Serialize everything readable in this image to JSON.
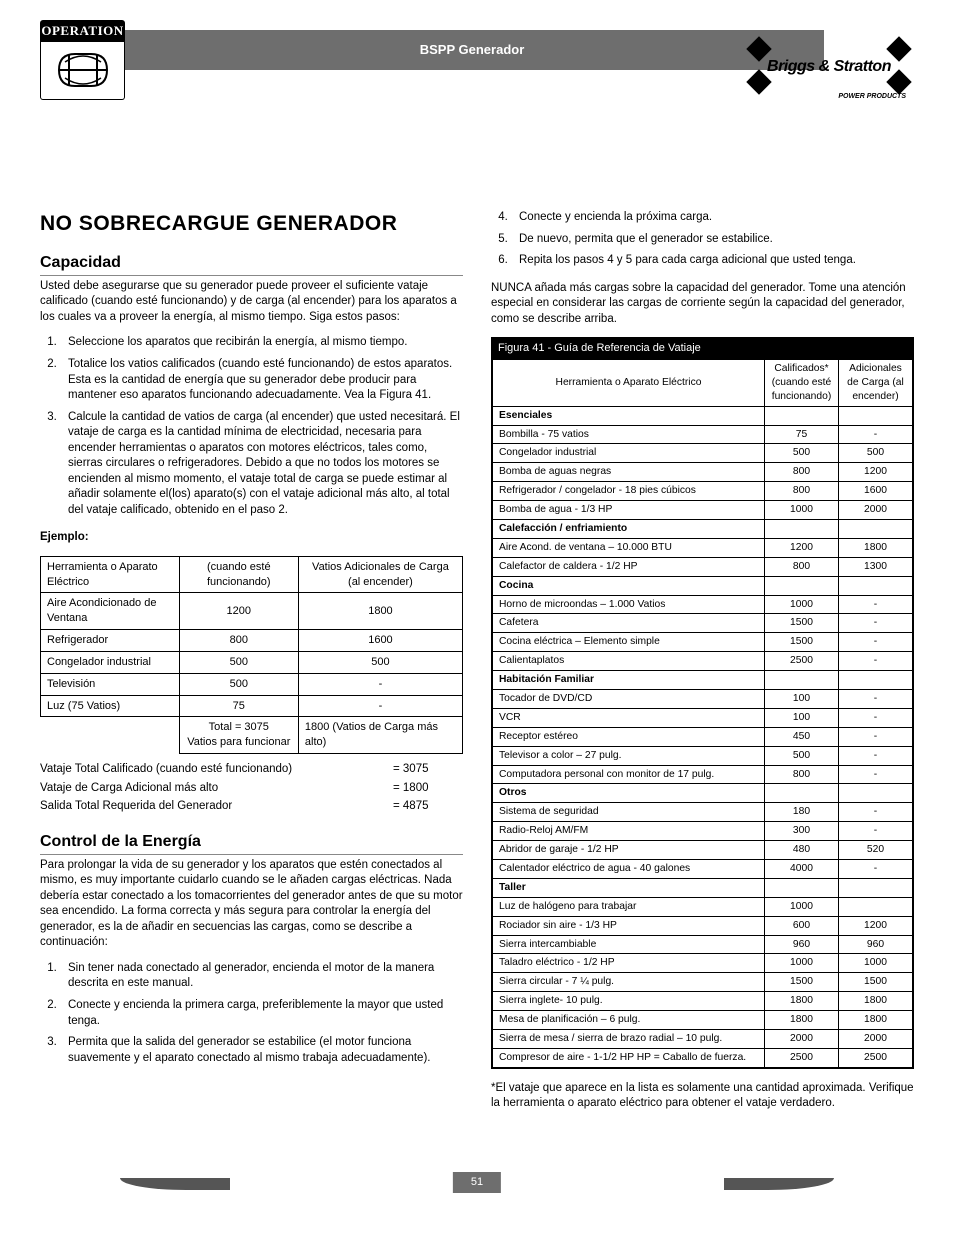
{
  "header": {
    "band_title": "BSPP Generador",
    "operation_label": "OPERATION",
    "brand_name": "Briggs & Stratton",
    "brand_sub": "POWER PRODUCTS"
  },
  "left": {
    "h1": "NO SOBRECARGUE GENERADOR",
    "capacity_h2": "Capacidad",
    "capacity_intro": "Usted debe asegurarse que su generador puede proveer el suficiente vataje calificado (cuando esté funcionando) y de carga (al encender) para los aparatos a los cuales va a proveer la energía, al mismo tiempo. Siga estos pasos:",
    "capacity_steps": [
      "Seleccione los aparatos que recibirán la energía, al mismo tiempo.",
      "Totalice los vatios calificados (cuando esté funcionando) de estos aparatos. Esta es la cantidad de energía que su generador debe producir para mantener eso aparatos funcionando adecuadamente. Vea la Figura 41.",
      "Calcule la cantidad de vatios de carga (al encender) que usted necesitará. El vataje de carga es la cantidad mínima de electricidad, necesaria para encender  herramientas o aparatos con motores eléctricos, tales como, sierras circulares o refrigeradores. Debido a que no todos los motores se encienden al mismo momento, el vataje total de carga se puede estimar al añadir solamente el(los) aparato(s) con el vataje adicional más alto, al total del vataje calificado, obtenido en el paso 2."
    ],
    "example_label": "Ejemplo:",
    "example_headers": [
      "Herramienta o Aparato Eléctrico",
      "(cuando esté funcionando)",
      "Vatios Adicionales de Carga (al encender)"
    ],
    "example_rows": [
      [
        "Aire Acondicionado de Ventana",
        "1200",
        "1800"
      ],
      [
        "Refrigerador",
        "800",
        "1600"
      ],
      [
        "Congelador industrial",
        "500",
        "500"
      ],
      [
        "Televisión",
        "500",
        "-"
      ],
      [
        "Luz (75 Vatios)",
        "75",
        "-"
      ]
    ],
    "example_totals": [
      "",
      "Total = 3075\nVatios para funcionar",
      "1800 (Vatios de Carga más alto)"
    ],
    "summary": [
      [
        "Vataje Total Calificado (cuando esté funcionando)",
        "= 3075"
      ],
      [
        "Vataje de Carga Adicional más alto",
        "= 1800"
      ],
      [
        "Salida Total Requerida del Generador",
        "= 4875"
      ]
    ],
    "control_h2": "Control de la Energía",
    "control_intro": "Para prolongar la vida de su generador y los aparatos que estén conectados al mismo, es muy importante cuidarlo cuando se le añaden cargas eléctricas. Nada debería estar conectado a los tomacorrientes del generador antes de que su motor sea encendido. La forma correcta y más segura para controlar la energía del generador, es la de añadir en secuencias las cargas, como se describe a continuación:",
    "control_steps": [
      "Sin tener nada conectado al generador, encienda el motor de la manera descrita en este manual.",
      "Conecte y encienda la primera carga, preferiblemente la mayor que usted tenga.",
      "Permita que la salida del generador se estabilice (el motor funciona suavemente y el aparato conectado al mismo trabaja adecuadamente)."
    ]
  },
  "right": {
    "cont_steps": [
      "Conecte y encienda la próxima carga.",
      "De nuevo, permita que el generador se estabilice.",
      "Repita los pasos 4 y 5 para cada carga adicional que usted tenga."
    ],
    "warning": "NUNCA añada más cargas sobre la capacidad del generador. Tome una atención especial en considerar las cargas de corriente según la capacidad del generador, como se describe arriba.",
    "figure_title": "Figura 41 - Guía de Referencia de Vatiaje",
    "ref_headers": [
      "Herramienta o Aparato Eléctrico",
      "Calificados* (cuando esté funcionando)",
      "Adicionales de Carga (al encender)"
    ],
    "ref_rows": [
      {
        "cat": true,
        "c": [
          "Esenciales",
          "",
          ""
        ]
      },
      {
        "c": [
          "Bombilla - 75 vatios",
          "75",
          "-"
        ]
      },
      {
        "c": [
          "Congelador industrial",
          "500",
          "500"
        ]
      },
      {
        "c": [
          "Bomba de aguas negras",
          "800",
          "1200"
        ]
      },
      {
        "c": [
          "Refrigerador / congelador - 18 pies cúbicos",
          "800",
          "1600"
        ]
      },
      {
        "c": [
          "Bomba de agua - 1/3 HP",
          "1000",
          "2000"
        ]
      },
      {
        "cat": true,
        "c": [
          "Calefacción / enfriamiento",
          "",
          ""
        ]
      },
      {
        "c": [
          "Aire Acond. de ventana – 10.000 BTU",
          "1200",
          "1800"
        ]
      },
      {
        "c": [
          "Calefactor de caldera  - 1/2 HP",
          "800",
          "1300"
        ]
      },
      {
        "cat": true,
        "c": [
          "Cocina",
          "",
          ""
        ]
      },
      {
        "c": [
          "Horno de microondas – 1.000 Vatios",
          "1000",
          "-"
        ]
      },
      {
        "c": [
          "Cafetera",
          "1500",
          "-"
        ]
      },
      {
        "c": [
          "Cocina eléctrica – Elemento simple",
          "1500",
          "-"
        ]
      },
      {
        "c": [
          "Calientaplatos",
          "2500",
          "-"
        ]
      },
      {
        "cat": true,
        "c": [
          "Habitación Familiar",
          "",
          ""
        ]
      },
      {
        "c": [
          "Tocador de DVD/CD",
          "100",
          "-"
        ]
      },
      {
        "c": [
          "VCR",
          "100",
          "-"
        ]
      },
      {
        "c": [
          "Receptor estéreo",
          "450",
          "-"
        ]
      },
      {
        "c": [
          "Televisor a color – 27 pulg.",
          "500",
          "-"
        ]
      },
      {
        "c": [
          "Computadora personal con monitor de 17 pulg.",
          "800",
          "-"
        ]
      },
      {
        "cat": true,
        "c": [
          "Otros",
          "",
          ""
        ]
      },
      {
        "c": [
          "Sistema de seguridad",
          "180",
          "-"
        ]
      },
      {
        "c": [
          "Radio-Reloj AM/FM",
          "300",
          "-"
        ]
      },
      {
        "c": [
          "Abridor de garaje - 1/2 HP",
          "480",
          "520"
        ]
      },
      {
        "c": [
          "Calentador eléctrico de agua - 40 galones",
          "4000",
          "-"
        ]
      },
      {
        "cat": true,
        "c": [
          "Taller",
          "",
          ""
        ]
      },
      {
        "c": [
          "Luz de halógeno para trabajar",
          "1000",
          ""
        ]
      },
      {
        "c": [
          "Rociador sin aire - 1/3 HP",
          "600",
          "1200"
        ]
      },
      {
        "c": [
          "Sierra intercambiable",
          "960",
          "960"
        ]
      },
      {
        "c": [
          "Taladro eléctrico - 1/2 HP",
          "1000",
          "1000"
        ]
      },
      {
        "c": [
          "Sierra circular - 7 ¼ pulg.",
          "1500",
          "1500"
        ]
      },
      {
        "c": [
          "Sierra inglete- 10 pulg.",
          "1800",
          "1800"
        ]
      },
      {
        "c": [
          "Mesa de planificación – 6 pulg.",
          "1800",
          "1800"
        ]
      },
      {
        "c": [
          "Sierra de mesa / sierra de brazo radial – 10 pulg.",
          "2000",
          "2000"
        ]
      },
      {
        "c": [
          "Compresor de aire - 1-1/2 HP HP = Caballo de fuerza.",
          "2500",
          "2500"
        ]
      }
    ],
    "footnote": "*El vataje que aparece en la lista es solamente una cantidad aproximada. Verifique la herramienta o aparato eléctrico para obtener el vataje verdadero."
  },
  "footer": {
    "page": "51"
  }
}
